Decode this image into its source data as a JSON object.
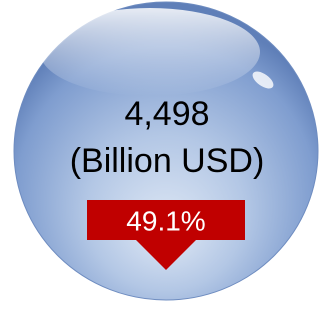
{
  "value": "4,498",
  "unit": "(Billion USD)",
  "change": "49.1%"
}
